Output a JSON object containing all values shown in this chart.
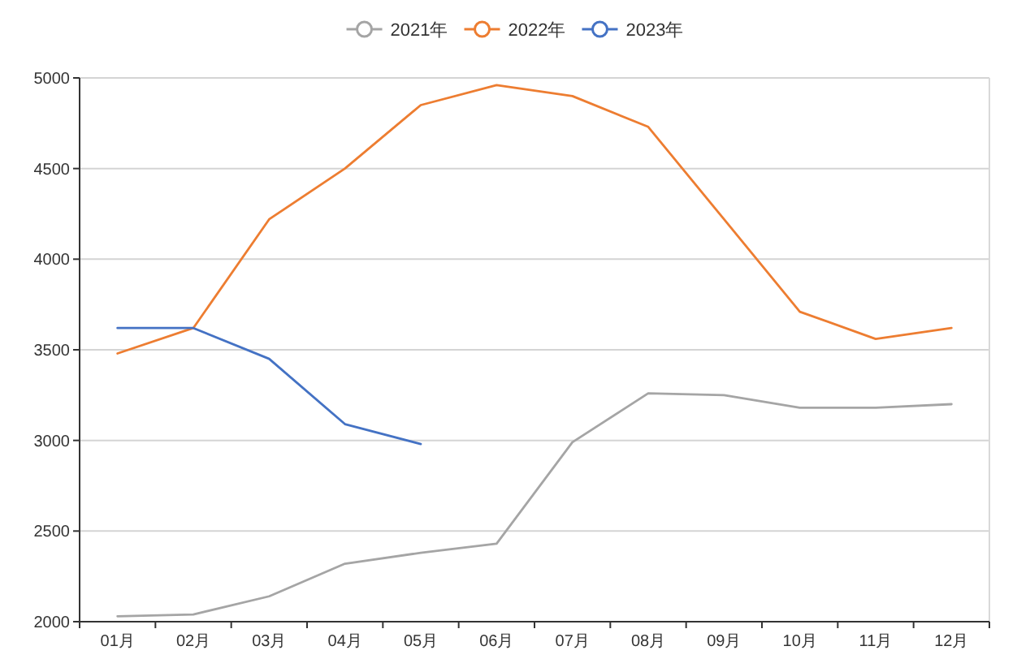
{
  "chart_data": {
    "type": "line",
    "categories": [
      "01月",
      "02月",
      "03月",
      "04月",
      "05月",
      "06月",
      "07月",
      "08月",
      "09月",
      "10月",
      "11月",
      "12月"
    ],
    "series": [
      {
        "name": "2021年",
        "color": "#a5a5a5",
        "values": [
          2030,
          2040,
          2140,
          2320,
          2380,
          2430,
          2990,
          3260,
          3250,
          3180,
          3180,
          3200
        ]
      },
      {
        "name": "2022年",
        "color": "#ed7d31",
        "values": [
          3480,
          3620,
          4220,
          4500,
          4850,
          4960,
          4900,
          4730,
          4220,
          3710,
          3560,
          3620
        ]
      },
      {
        "name": "2023年",
        "color": "#4472c4",
        "values": [
          3620,
          3620,
          3450,
          3090,
          2980,
          null,
          null,
          null,
          null,
          null,
          null,
          null
        ]
      }
    ],
    "ylim": [
      2000,
      5000
    ],
    "yticks": [
      2000,
      2500,
      3000,
      3500,
      4000,
      4500,
      5000
    ],
    "grid": "y",
    "legend": "top",
    "marker": "none",
    "line_style": "solid"
  }
}
